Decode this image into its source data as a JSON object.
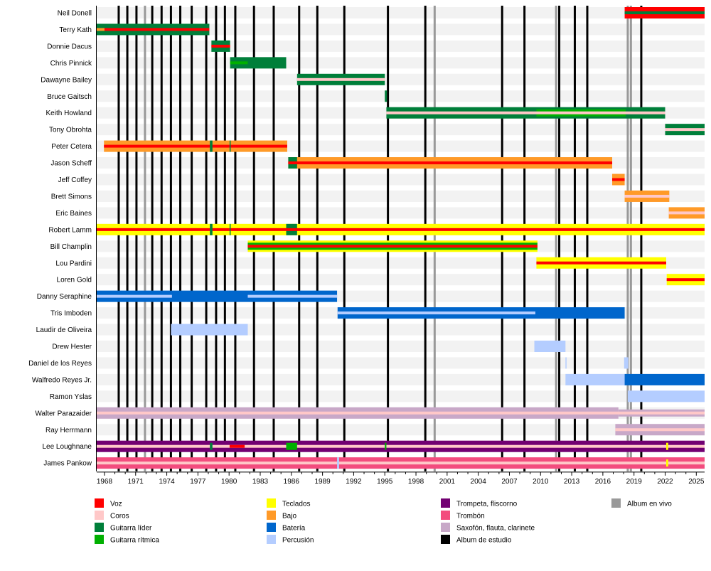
{
  "chart_data": {
    "type": "timeline",
    "title": "",
    "xlim": [
      1967.25,
      2025.8
    ],
    "x_ticks": [
      1968,
      1971,
      1974,
      1977,
      1980,
      1983,
      1986,
      1989,
      1992,
      1995,
      1998,
      2001,
      2004,
      2007,
      2010,
      2013,
      2016,
      2019,
      2022,
      2025
    ],
    "colors": {
      "Voz": "#FF0000",
      "Coros": "#FFC8C8",
      "Guitarra líder": "#007F3A",
      "Guitarra rítmica": "#00B000",
      "Teclados": "#FFFF00",
      "Bajo": "#FF9A28",
      "Batería": "#0066CC",
      "Percusión": "#B4CDFF",
      "Trompeta, fliscorno": "#720072",
      "Trombón": "#F34C7E",
      "Saxofón, flauta, clarinete": "#C8A8C8",
      "Album de estudio": "#000000",
      "Album en vivo": "#999999"
    },
    "members": [
      {
        "name": "Neil Donell",
        "bars": [
          {
            "role": "Voz",
            "start": 2018.1,
            "end": 2025.8,
            "layer": "main"
          },
          {
            "role": "Guitarra líder",
            "start": 2018.1,
            "end": 2025.8,
            "layer": "stripe"
          }
        ]
      },
      {
        "name": "Terry Kath",
        "bars": [
          {
            "role": "Guitarra líder",
            "start": 1967.25,
            "end": 1978.1,
            "layer": "main"
          },
          {
            "role": "Voz",
            "start": 1967.25,
            "end": 1978.1,
            "layer": "stripe"
          },
          {
            "role": "Bajo",
            "start": 1967.25,
            "end": 1968.0,
            "layer": "stripe"
          }
        ]
      },
      {
        "name": "Donnie Dacus",
        "bars": [
          {
            "role": "Guitarra líder",
            "start": 1978.3,
            "end": 1980.1,
            "layer": "main"
          },
          {
            "role": "Voz",
            "start": 1978.3,
            "end": 1980.1,
            "layer": "stripe"
          }
        ]
      },
      {
        "name": "Chris Pinnick",
        "bars": [
          {
            "role": "Guitarra líder",
            "start": 1980.1,
            "end": 1985.5,
            "layer": "main"
          },
          {
            "role": "Guitarra rítmica",
            "start": 1980.1,
            "end": 1981.8,
            "layer": "stripe"
          }
        ]
      },
      {
        "name": "Dawayne Bailey",
        "bars": [
          {
            "role": "Guitarra líder",
            "start": 1986.55,
            "end": 1995.0,
            "layer": "main"
          },
          {
            "role": "Coros",
            "start": 1986.55,
            "end": 1995.0,
            "layer": "stripe"
          }
        ]
      },
      {
        "name": "Bruce Gaitsch",
        "bars": [
          {
            "role": "Guitarra líder",
            "start": 1995.0,
            "end": 1995.2,
            "layer": "main"
          }
        ]
      },
      {
        "name": "Keith Howland",
        "bars": [
          {
            "role": "Guitarra líder",
            "start": 1995.15,
            "end": 2022.0,
            "layer": "main"
          },
          {
            "role": "Guitarra rítmica",
            "start": 2009.6,
            "end": 2018.2,
            "layer": "mid"
          },
          {
            "role": "Coros",
            "start": 1995.15,
            "end": 2022.0,
            "layer": "stripe"
          }
        ]
      },
      {
        "name": "Tony Obrohta",
        "bars": [
          {
            "role": "Guitarra líder",
            "start": 2022.0,
            "end": 2025.8,
            "layer": "main"
          },
          {
            "role": "Coros",
            "start": 2022.0,
            "end": 2025.8,
            "layer": "stripe"
          }
        ]
      },
      {
        "name": "Peter Cetera",
        "bars": [
          {
            "role": "Bajo",
            "start": 1967.95,
            "end": 1985.6,
            "layer": "main"
          },
          {
            "role": "Voz",
            "start": 1967.95,
            "end": 1985.6,
            "layer": "stripe"
          },
          {
            "role": "Guitarra líder",
            "start": 1978.15,
            "end": 1978.4,
            "layer": "main"
          },
          {
            "role": "Guitarra líder",
            "start": 1980.05,
            "end": 1980.15,
            "layer": "main"
          }
        ]
      },
      {
        "name": "Jason Scheff",
        "bars": [
          {
            "role": "Bajo",
            "start": 1985.7,
            "end": 2016.9,
            "layer": "main"
          },
          {
            "role": "Voz",
            "start": 1985.7,
            "end": 2016.9,
            "layer": "stripe"
          },
          {
            "role": "Guitarra líder",
            "start": 1985.7,
            "end": 1986.55,
            "layer": "main"
          },
          {
            "role": "Voz",
            "start": 1985.7,
            "end": 1986.55,
            "layer": "stripe"
          }
        ]
      },
      {
        "name": "Jeff Coffey",
        "bars": [
          {
            "role": "Bajo",
            "start": 2016.9,
            "end": 2018.1,
            "layer": "main"
          },
          {
            "role": "Voz",
            "start": 2016.9,
            "end": 2018.1,
            "layer": "stripe"
          }
        ]
      },
      {
        "name": "Brett Simons",
        "bars": [
          {
            "role": "Bajo",
            "start": 2018.1,
            "end": 2022.4,
            "layer": "main"
          },
          {
            "role": "Coros",
            "start": 2018.1,
            "end": 2022.4,
            "layer": "stripe"
          }
        ]
      },
      {
        "name": "Eric Baines",
        "bars": [
          {
            "role": "Bajo",
            "start": 2022.35,
            "end": 2025.8,
            "layer": "main"
          },
          {
            "role": "Coros",
            "start": 2022.35,
            "end": 2025.8,
            "layer": "stripe"
          }
        ]
      },
      {
        "name": "Robert Lamm",
        "bars": [
          {
            "role": "Teclados",
            "start": 1967.25,
            "end": 2025.8,
            "layer": "main"
          },
          {
            "role": "Voz",
            "start": 1967.25,
            "end": 2025.8,
            "layer": "stripe"
          },
          {
            "role": "Guitarra líder",
            "start": 1978.15,
            "end": 1978.4,
            "layer": "main"
          },
          {
            "role": "Guitarra líder",
            "start": 1980.05,
            "end": 1980.15,
            "layer": "main"
          },
          {
            "role": "Guitarra líder",
            "start": 1985.5,
            "end": 1986.55,
            "layer": "main"
          },
          {
            "role": "Voz",
            "start": 1985.5,
            "end": 1986.55,
            "layer": "stripe"
          }
        ]
      },
      {
        "name": "Bill Champlin",
        "bars": [
          {
            "role": "Teclados",
            "start": 1981.8,
            "end": 2009.7,
            "layer": "main"
          },
          {
            "role": "Guitarra rítmica",
            "start": 1981.8,
            "end": 2009.7,
            "layer": "mid"
          },
          {
            "role": "Voz",
            "start": 1981.8,
            "end": 2009.7,
            "layer": "stripe"
          }
        ]
      },
      {
        "name": "Lou Pardini",
        "bars": [
          {
            "role": "Teclados",
            "start": 2009.6,
            "end": 2022.1,
            "layer": "main"
          },
          {
            "role": "Voz",
            "start": 2009.6,
            "end": 2022.1,
            "layer": "stripe"
          }
        ]
      },
      {
        "name": "Loren Gold",
        "bars": [
          {
            "role": "Teclados",
            "start": 2022.15,
            "end": 2025.8,
            "layer": "main"
          },
          {
            "role": "Voz",
            "start": 2022.15,
            "end": 2025.8,
            "layer": "stripe"
          }
        ]
      },
      {
        "name": "Danny Seraphine",
        "bars": [
          {
            "role": "Batería",
            "start": 1967.25,
            "end": 1990.4,
            "layer": "main"
          },
          {
            "role": "Percusión",
            "start": 1967.25,
            "end": 1974.5,
            "layer": "stripe"
          },
          {
            "role": "Percusión",
            "start": 1981.8,
            "end": 1990.4,
            "layer": "stripe"
          }
        ]
      },
      {
        "name": "Tris Imboden",
        "bars": [
          {
            "role": "Batería",
            "start": 1990.45,
            "end": 2018.1,
            "layer": "main"
          },
          {
            "role": "Percusión",
            "start": 1990.45,
            "end": 2009.5,
            "layer": "stripe"
          }
        ]
      },
      {
        "name": "Laudir de Oliveira",
        "bars": [
          {
            "role": "Percusión",
            "start": 1974.4,
            "end": 1981.8,
            "layer": "main"
          }
        ]
      },
      {
        "name": "Drew Hester",
        "bars": [
          {
            "role": "Percusión",
            "start": 2009.4,
            "end": 2012.4,
            "layer": "main"
          }
        ]
      },
      {
        "name": "Daniel de los Reyes",
        "bars": [
          {
            "role": "Percusión",
            "start": 2012.4,
            "end": 2012.5,
            "layer": "main"
          },
          {
            "role": "Percusión",
            "start": 2018.05,
            "end": 2018.45,
            "layer": "main"
          }
        ]
      },
      {
        "name": "Walfredo Reyes Jr.",
        "bars": [
          {
            "role": "Percusión",
            "start": 2012.4,
            "end": 2018.1,
            "layer": "main"
          },
          {
            "role": "Batería",
            "start": 2018.1,
            "end": 2025.8,
            "layer": "main"
          }
        ]
      },
      {
        "name": "Ramon Yslas",
        "bars": [
          {
            "role": "Percusión",
            "start": 2018.4,
            "end": 2025.8,
            "layer": "main"
          }
        ]
      },
      {
        "name": "Walter Parazaider",
        "bars": [
          {
            "role": "Saxofón, flauta, clarinete",
            "start": 1967.25,
            "end": 2017.5,
            "layer": "main"
          },
          {
            "role": "Saxofón, flauta, clarinete",
            "start": 2017.5,
            "end": 2025.8,
            "layer": "mid"
          },
          {
            "role": "Coros",
            "start": 1967.25,
            "end": 2025.8,
            "layer": "stripe"
          }
        ]
      },
      {
        "name": "Ray Herrmann",
        "bars": [
          {
            "role": "Saxofón, flauta, clarinete",
            "start": 2017.2,
            "end": 2025.8,
            "layer": "main"
          },
          {
            "role": "Coros",
            "start": 2017.2,
            "end": 2025.8,
            "layer": "stripe"
          }
        ]
      },
      {
        "name": "Lee Loughnane",
        "bars": [
          {
            "role": "Trompeta, fliscorno",
            "start": 1967.25,
            "end": 2025.8,
            "layer": "main"
          },
          {
            "role": "Coros",
            "start": 1967.25,
            "end": 2025.8,
            "layer": "stripe"
          },
          {
            "role": "Guitarra líder",
            "start": 1978.15,
            "end": 1978.4,
            "layer": "mid"
          },
          {
            "role": "Voz",
            "start": 1980.05,
            "end": 1981.5,
            "layer": "stripe"
          },
          {
            "role": "Guitarra rítmica",
            "start": 1985.5,
            "end": 1986.55,
            "layer": "mid"
          },
          {
            "role": "Guitarra rítmica",
            "start": 1995.0,
            "end": 1995.15,
            "layer": "mid"
          },
          {
            "role": "Teclados",
            "start": 2022.1,
            "end": 2022.3,
            "layer": "mid"
          }
        ]
      },
      {
        "name": "James Pankow",
        "bars": [
          {
            "role": "Trombón",
            "start": 1967.25,
            "end": 2025.8,
            "layer": "main"
          },
          {
            "role": "Coros",
            "start": 1967.25,
            "end": 2025.8,
            "layer": "stripe"
          },
          {
            "role": "Percusión",
            "start": 1990.4,
            "end": 1990.6,
            "layer": "main"
          },
          {
            "role": "Teclados",
            "start": 2022.1,
            "end": 2022.3,
            "layer": "mid"
          }
        ]
      }
    ],
    "studio_albums": [
      1969.37,
      1970.2,
      1971.08,
      1972.6,
      1973.5,
      1974.4,
      1975.3,
      1976.4,
      1977.8,
      1978.75,
      1979.6,
      1980.6,
      1982.4,
      1984.3,
      1986.75,
      1988.5,
      1991.1,
      1995.3,
      1998.9,
      2006.3,
      2008.45,
      2011.8,
      2013.3,
      2014.5,
      2019.7
    ],
    "live_albums": [
      1971.9,
      1999.8,
      2011.5,
      2018.4,
      2018.7
    ],
    "legend": [
      [
        "Voz",
        "Coros",
        "Guitarra líder",
        "Guitarra rítmica"
      ],
      [
        "Teclados",
        "Bajo",
        "Batería",
        "Percusión"
      ],
      [
        "Trompeta, fliscorno",
        "Trombón",
        "Saxofón, flauta, clarinete",
        "Album de estudio"
      ],
      [
        "Album en vivo"
      ]
    ]
  }
}
